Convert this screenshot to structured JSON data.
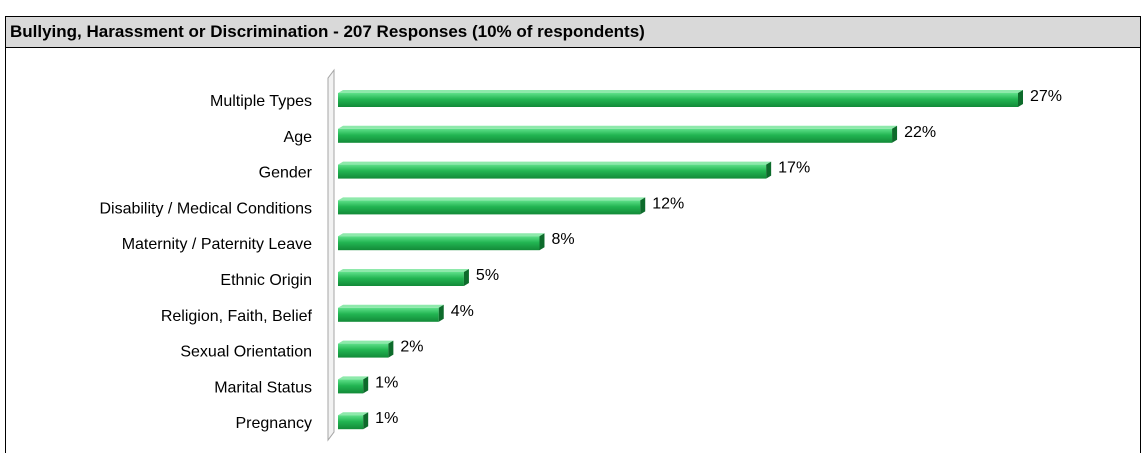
{
  "chart_data": {
    "type": "bar",
    "orientation": "horizontal",
    "title": "Bullying, Harassment or Discrimination - 207 Responses (10% of respondents)",
    "categories": [
      "Multiple Types",
      "Age",
      "Gender",
      "Disability / Medical Conditions",
      "Maternity / Paternity Leave",
      "Ethnic Origin",
      "Religion, Faith, Belief",
      "Sexual Orientation",
      "Marital Status",
      "Pregnancy"
    ],
    "values": [
      27,
      22,
      17,
      12,
      8,
      5,
      4,
      2,
      1,
      1
    ],
    "data_labels": [
      "27%",
      "22%",
      "17%",
      "12%",
      "8%",
      "5%",
      "4%",
      "2%",
      "1%",
      "1%"
    ],
    "unit": "%",
    "bar_color": "#1fae4d",
    "gridlines": false,
    "legend": "none"
  }
}
